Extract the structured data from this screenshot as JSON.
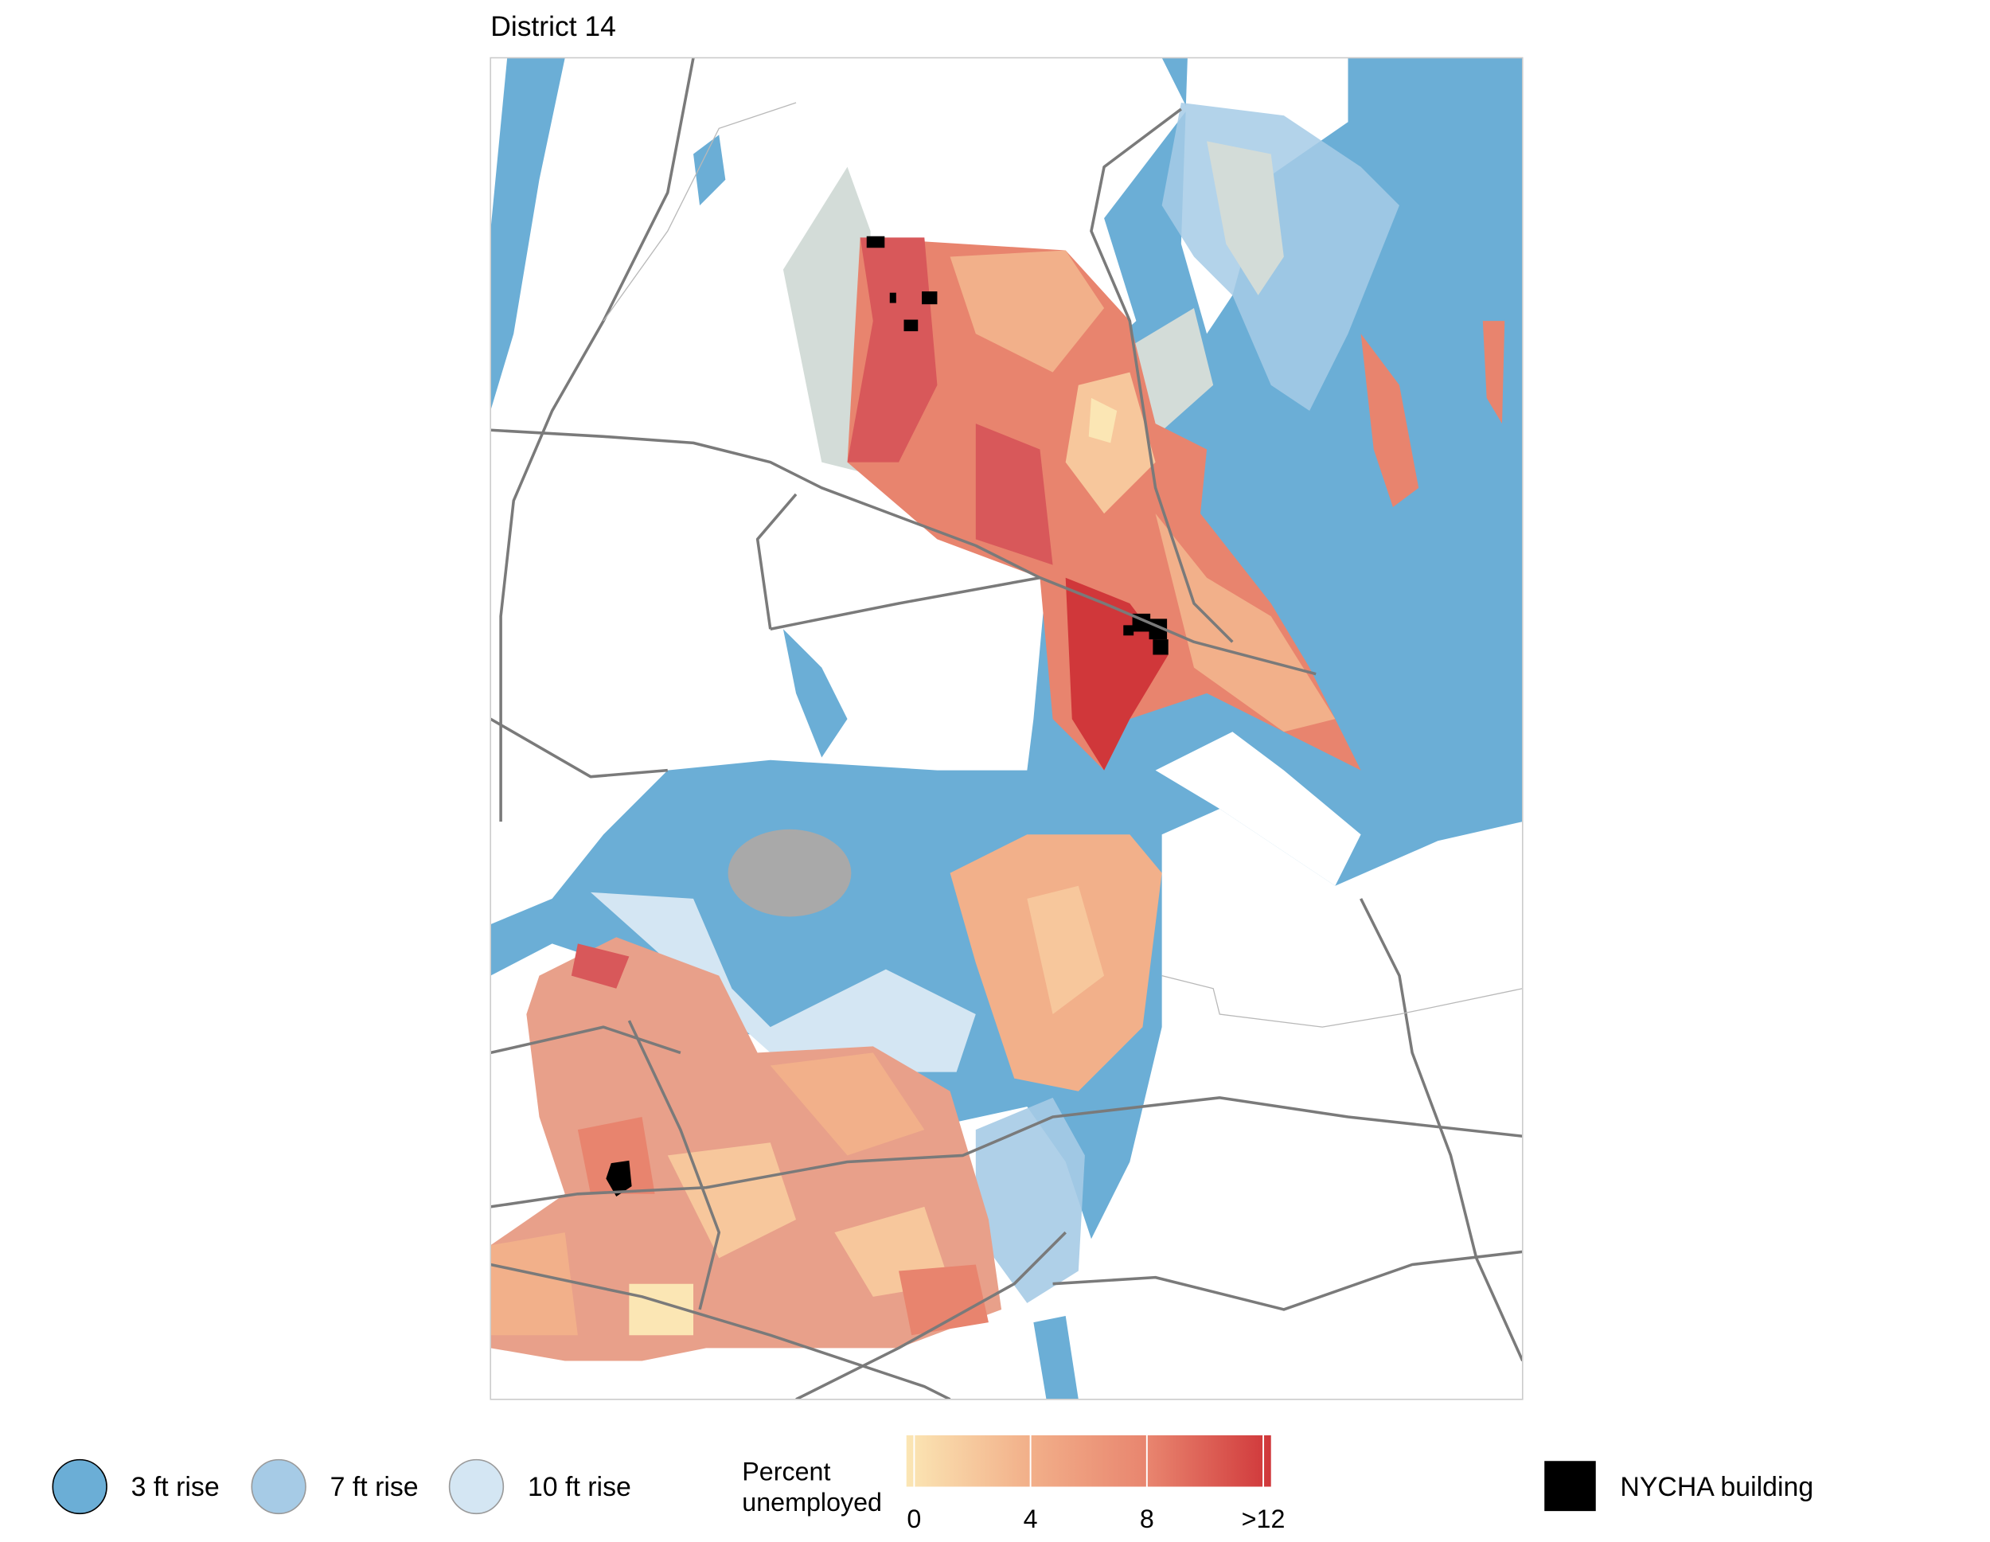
{
  "title": "District 14",
  "legend": {
    "sea_level": [
      {
        "label": "3 ft rise",
        "color": "#6baed6"
      },
      {
        "label": "7 ft rise",
        "color": "#a6cbe6"
      },
      {
        "label": "10 ft rise",
        "color": "#d4e6f3"
      }
    ],
    "unemployment": {
      "title_lines": [
        "Percent",
        "unemployed"
      ],
      "range": [
        0,
        12
      ],
      "ticks": [
        0,
        4,
        8,
        {
          "value": 12,
          "label": ">12"
        }
      ],
      "colors": [
        "#fbe6b4",
        "#f2b08a",
        "#e8846e",
        "#d0373a"
      ]
    },
    "nycha": {
      "label": "NYCHA building",
      "color": "#000000"
    }
  }
}
